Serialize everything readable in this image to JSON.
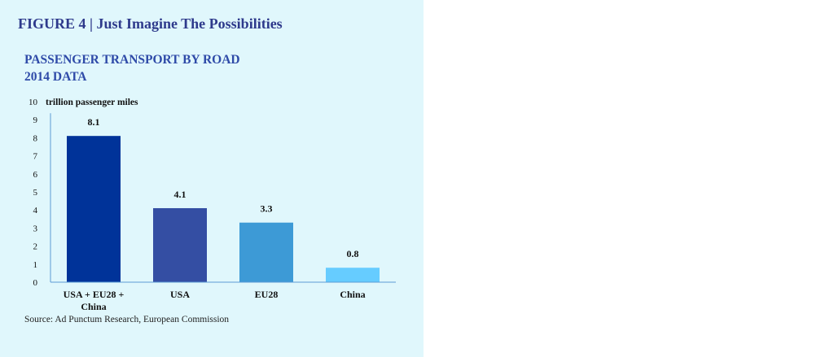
{
  "figure": {
    "label": "FIGURE 4",
    "separator": "|",
    "title": "Just Imagine The Possibilities"
  },
  "source": "Source: Ad Punctum Research, European Commission",
  "colors": {
    "panel_background": "#e0f7fc",
    "title": "#2e3a8c",
    "axis": "#5b9bd5"
  },
  "chart_data": {
    "type": "bar",
    "title": "PASSENGER TRANSPORT BY ROAD",
    "subtitle": "2014 DATA",
    "ylabel": "trillion passenger miles",
    "xlabel": "",
    "categories": [
      [
        "USA + EU28 +",
        "China"
      ],
      [
        "USA"
      ],
      [
        "EU28"
      ],
      [
        "China"
      ]
    ],
    "values": [
      8.1,
      4.1,
      3.3,
      0.8
    ],
    "value_labels": [
      "8.1",
      "4.1",
      "3.3",
      "0.8"
    ],
    "bar_colors": [
      "#003399",
      "#344ea3",
      "#3d9ad6",
      "#66ccff"
    ],
    "ylim": [
      0,
      10
    ],
    "yticks": [
      0,
      1,
      2,
      3,
      4,
      5,
      6,
      7,
      8,
      9,
      10
    ],
    "grid": false,
    "legend": "none"
  }
}
